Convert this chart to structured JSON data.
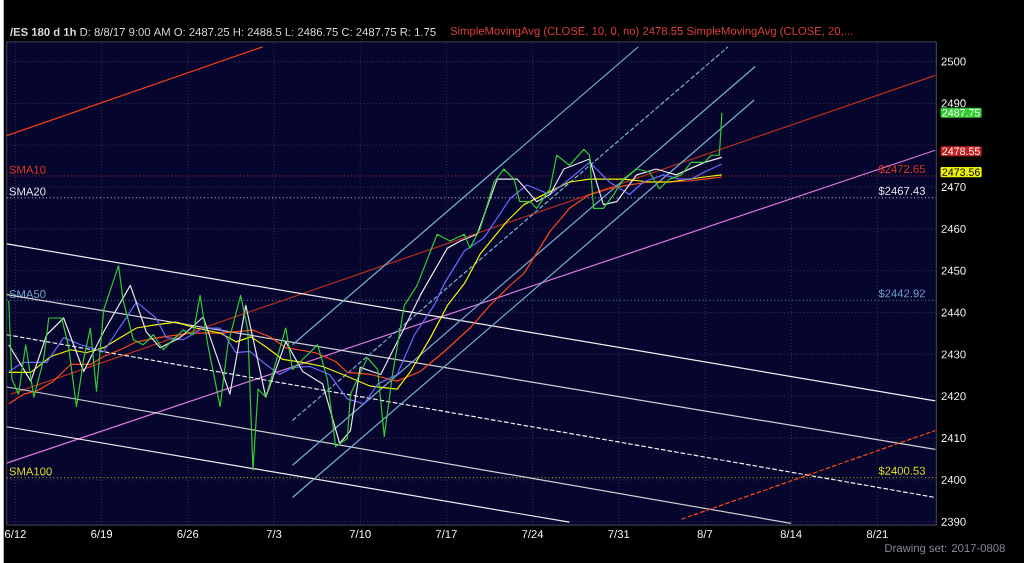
{
  "chart_data": {
    "type": "line",
    "title": "**/ES 180 d 1h**   D: 8/8/17 9:00 AM   O: 2487.25   H: 2488.5   L: 2486.75   C: 2487.75   R: 1.75",
    "subtitle": "SimpleMovingAvg (CLOSE, 10, 0, no) 2478.55   SimpleMovingAvg (CLOSE, 20,...",
    "xlim": [
      "2017-06-11T07:00",
      "2017-08-25T19:00"
    ],
    "ylim": [
      2389.2,
      2504.7
    ],
    "xticks": [
      {
        "value": "2017-06-12",
        "label": "6/12"
      },
      {
        "value": "2017-06-19",
        "label": "6/19"
      },
      {
        "value": "2017-06-26",
        "label": "6/26"
      },
      {
        "value": "2017-07-03",
        "label": "7/3"
      },
      {
        "value": "2017-07-10",
        "label": "7/10"
      },
      {
        "value": "2017-07-17",
        "label": "7/17"
      },
      {
        "value": "2017-07-24",
        "label": "7/24"
      },
      {
        "value": "2017-07-31",
        "label": "7/31"
      },
      {
        "value": "2017-08-07",
        "label": "8/7"
      },
      {
        "value": "2017-08-14",
        "label": "8/14"
      },
      {
        "value": "2017-08-21",
        "label": "8/21"
      }
    ],
    "yticks": [
      2390,
      2400,
      2410,
      2420,
      2430,
      2440,
      2450,
      2460,
      2470,
      {
        "value": 2480,
        "label": null
      },
      2490,
      2500
    ],
    "grid": true,
    "marker": "none",
    "series": [
      {
        "color": "#f0401a",
        "line_style": "solid",
        "x": [
          "2017-06-11T07:00",
          "2017-07-02T02:00"
        ],
        "values": [
          2482.3,
          2503.5
        ]
      },
      {
        "color": "#b8301a",
        "line_style": "solid",
        "x": [
          "2017-06-11T15:00",
          "2017-08-25T17:00"
        ],
        "values": [
          2420.5,
          2496.7
        ]
      },
      {
        "color": "#e07ae0",
        "line_style": "solid",
        "x": [
          "2017-06-11T07:00",
          "2017-08-25T17:00"
        ],
        "values": [
          2404.0,
          2478.8
        ]
      },
      {
        "color": "#f0f0f0",
        "line_style": "solid",
        "x": [
          "2017-06-11T07:00",
          "2017-08-25T17:00"
        ],
        "values": [
          2456.4,
          2418.9
        ]
      },
      {
        "color": "#d0d0d0",
        "line_style": "solid",
        "x": [
          "2017-06-11T07:00",
          "2017-08-25T17:00"
        ],
        "values": [
          2444.3,
          2407.3
        ]
      },
      {
        "color": "#f0f0f0",
        "line_style": "dashed",
        "x": [
          "2017-06-11T07:00",
          "2017-08-25T17:00"
        ],
        "values": [
          2434.7,
          2395.8
        ]
      },
      {
        "color": "#d0d0d0",
        "line_style": "solid",
        "x": [
          "2017-06-11T07:00",
          "2017-08-14T00:00"
        ],
        "values": [
          2422.2,
          2389.6
        ]
      },
      {
        "color": "#f0f0f0",
        "line_style": "solid",
        "x": [
          "2017-06-11T07:00",
          "2017-07-27T00:00"
        ],
        "values": [
          2412.7,
          2389.9
        ]
      },
      {
        "color": "#ff4a14",
        "line_style": "dashed",
        "x": [
          "2017-08-05T02:00",
          "2017-08-25T17:00"
        ],
        "values": [
          2390.6,
          2411.8
        ]
      },
      {
        "color": "#7ab0d0",
        "line_style": "solid",
        "x": [
          "2017-07-04T12:00",
          "2017-08-01T14:00"
        ],
        "values": [
          2432.3,
          2503.5
        ]
      },
      {
        "color": "#7ab0d0",
        "line_style": "dashed",
        "x": [
          "2017-07-04T12:00",
          "2017-08-08T21:00"
        ],
        "values": [
          2414.2,
          2503.5
        ]
      },
      {
        "color": "#7ab0d0",
        "line_style": "solid",
        "x": [
          "2017-07-04T12:00",
          "2017-08-11T02:00"
        ],
        "values": [
          2403.5,
          2498.8
        ]
      },
      {
        "color": "#7ab0d0",
        "line_style": "solid",
        "x": [
          "2017-07-04T12:00",
          "2017-08-11T00:00"
        ],
        "values": [
          2395.8,
          2490.8
        ]
      },
      {
        "color": "#ff4a14",
        "line_style": "solid",
        "x": [
          "2017-06-11T11:00",
          "2017-06-12T16:00",
          "2017-06-13T17:00",
          "2017-06-15T02:00",
          "2017-06-16T12:00",
          "2017-06-18T02:00",
          "2017-06-19T04:00",
          "2017-06-20T12:00",
          "2017-06-21T20:00",
          "2017-06-24T00:00",
          "2017-06-26T05:00",
          "2017-06-28T15:00",
          "2017-07-01T07:00",
          "2017-07-02T16:00",
          "2017-07-03T23:00",
          "2017-07-06T09:00",
          "2017-07-08T00:00",
          "2017-07-08T23:00",
          "2017-07-10T20:00",
          "2017-07-13T00:00",
          "2017-07-14T21:00",
          "2017-07-16T20:00",
          "2017-07-18T22:00",
          "2017-07-20T13:00",
          "2017-07-22T04:00",
          "2017-07-23T07:00",
          "2017-07-25T10:00",
          "2017-07-27T00:00",
          "2017-07-28T15:00",
          "2017-07-30T06:00",
          "2017-07-31T21:00",
          "2017-08-02T12:00",
          "2017-08-04T03:00",
          "2017-08-05T21:00",
          "2017-08-06T23:00",
          "2017-08-08T09:00"
        ],
        "values": [
          2418.2,
          2420.5,
          2421.2,
          2423.6,
          2427.6,
          2427.6,
          2429.5,
          2431.1,
          2433.0,
          2434.2,
          2435.1,
          2435.1,
          2435.8,
          2434.2,
          2431.6,
          2430.4,
          2428.3,
          2425.7,
          2425.2,
          2423.6,
          2425.9,
          2430.7,
          2436.3,
          2441.7,
          2446.5,
          2449.3,
          2459.4,
          2464.9,
          2468.2,
          2469.6,
          2470.5,
          2471.2,
          2471.2,
          2471.5,
          2471.9,
          2472.4
        ]
      },
      {
        "color": "#f5f500",
        "line_style": "solid",
        "x": [
          "2017-06-11T11:00",
          "2017-06-13T06:00",
          "2017-06-14T21:00",
          "2017-06-16T12:00",
          "2017-06-17T18:00",
          "2017-06-19T04:00",
          "2017-06-20T12:00",
          "2017-06-21T20:00",
          "2017-06-23T05:00",
          "2017-06-25T01:00",
          "2017-06-26T16:00",
          "2017-06-28T15:00",
          "2017-06-29T22:00",
          "2017-07-01T03:00",
          "2017-07-02T08:00",
          "2017-07-03T17:00",
          "2017-07-05T08:00",
          "2017-07-06T23:00",
          "2017-07-08T14:00",
          "2017-07-10T20:00",
          "2017-07-13T00:00",
          "2017-07-14T02:00",
          "2017-07-15T17:00",
          "2017-07-17T02:00",
          "2017-07-18T11:00",
          "2017-07-19T18:00",
          "2017-07-21T22:00",
          "2017-07-23T07:00",
          "2017-07-25T10:00",
          "2017-07-27T00:00",
          "2017-07-28T15:00",
          "2017-07-31T09:00",
          "2017-08-02T12:00",
          "2017-08-04T03:00",
          "2017-08-06T23:00",
          "2017-08-08T09:00"
        ],
        "values": [
          2425.7,
          2425.7,
          2429.5,
          2431.1,
          2430.4,
          2431.6,
          2434.0,
          2436.3,
          2437.0,
          2437.7,
          2436.3,
          2435.1,
          2433.0,
          2434.2,
          2431.8,
          2428.8,
          2428.1,
          2427.1,
          2425.2,
          2422.4,
          2421.7,
          2425.9,
          2434.0,
          2441.7,
          2446.9,
          2454.0,
          2461.8,
          2465.8,
          2468.9,
          2471.2,
          2471.9,
          2471.9,
          2471.2,
          2471.2,
          2472.4,
          2472.9
        ]
      },
      {
        "color": "#6b6bff",
        "line_style": "solid",
        "x": [
          "2017-06-11T11:00",
          "2017-06-12T16:00",
          "2017-06-14T13:00",
          "2017-06-15T22:00",
          "2017-06-17T07:00",
          "2017-06-19T04:00",
          "2017-06-21T20:00",
          "2017-06-23T10:00",
          "2017-06-24T06:00",
          "2017-06-25T15:00",
          "2017-06-27T06:00",
          "2017-06-28T15:00",
          "2017-06-29T22:00",
          "2017-07-01T01:00",
          "2017-07-02T08:00",
          "2017-07-03T11:00",
          "2017-07-04T12:00",
          "2017-07-05T22:00",
          "2017-07-07T12:00",
          "2017-07-08T23:00",
          "2017-07-10T08:00",
          "2017-07-11T10:00",
          "2017-07-13T00:00",
          "2017-07-14T10:00",
          "2017-07-16T00:00",
          "2017-07-16T20:00",
          "2017-07-18T11:00",
          "2017-07-20T01:00",
          "2017-07-22T04:00",
          "2017-07-23T13:00",
          "2017-07-25T10:00",
          "2017-07-27T00:00",
          "2017-07-28T15:00",
          "2017-07-30T06:00",
          "2017-07-31T21:00",
          "2017-08-02T00:00",
          "2017-08-03T15:00",
          "2017-08-04T22:00",
          "2017-08-05T21:00",
          "2017-08-06T23:00",
          "2017-08-08T09:00"
        ],
        "values": [
          2425.9,
          2428.1,
          2428.1,
          2434.0,
          2432.3,
          2430.7,
          2442.5,
          2438.7,
          2434.0,
          2433.5,
          2436.3,
          2436.3,
          2430.4,
          2430.7,
          2427.6,
          2425.2,
          2426.9,
          2427.1,
          2425.2,
          2419.3,
          2418.2,
          2422.9,
          2425.2,
          2434.7,
          2441.7,
          2446.9,
          2454.7,
          2457.8,
          2467.2,
          2470.5,
          2468.2,
          2471.9,
          2475.9,
          2471.2,
          2468.2,
          2471.2,
          2472.9,
          2471.9,
          2471.9,
          2473.6,
          2475.5
        ]
      },
      {
        "color": "#e8e8e8",
        "line_style": "solid",
        "x": [
          "2017-06-11T11:00",
          "2017-06-13T06:00",
          "2017-06-14T13:00",
          "2017-06-15T22:00",
          "2017-06-17T13:00",
          "2017-06-19T04:00",
          "2017-06-21T08:00",
          "2017-06-22T15:00",
          "2017-06-23T18:00",
          "2017-06-25T09:00",
          "2017-06-27T06:00",
          "2017-06-29T10:00",
          "2017-06-30T17:00",
          "2017-07-02T08:00",
          "2017-07-03T23:00",
          "2017-07-05T08:00",
          "2017-07-06T23:00",
          "2017-07-08T08:00",
          "2017-07-09T05:00",
          "2017-07-10T00:00",
          "2017-07-11T16:00",
          "2017-07-13T14:00",
          "2017-07-14T21:00",
          "2017-07-17T02:00",
          "2017-07-18T03:00",
          "2017-07-19T12:00",
          "2017-07-21T03:00",
          "2017-07-22T18:00",
          "2017-07-24T08:00",
          "2017-07-25T10:00",
          "2017-07-26T13:00",
          "2017-07-28T15:00",
          "2017-07-29T18:00",
          "2017-07-30T20:00",
          "2017-08-01T11:00",
          "2017-08-03T01:00",
          "2017-08-04T16:00",
          "2017-08-06T23:00",
          "2017-08-08T09:00"
        ],
        "values": [
          2432.3,
          2423.6,
          2434.7,
          2438.7,
          2425.9,
          2435.4,
          2446.5,
          2435.4,
          2431.6,
          2434.0,
          2438.9,
          2420.5,
          2441.7,
          2419.8,
          2433.0,
          2425.9,
          2422.9,
          2408.7,
          2411.8,
          2426.9,
          2425.2,
          2436.3,
          2444.1,
          2455.4,
          2457.1,
          2458.7,
          2471.9,
          2471.9,
          2466.5,
          2468.2,
          2474.3,
          2476.7,
          2465.8,
          2466.5,
          2472.9,
          2474.3,
          2472.9,
          2475.9,
          2477.1
        ]
      },
      {
        "color": "#33cc33",
        "line_style": "solid",
        "x": [
          "2017-06-11T11:00",
          "2017-06-11T17:00",
          "2017-06-12T06:00",
          "2017-06-12T20:00",
          "2017-06-13T12:00",
          "2017-06-14T07:00",
          "2017-06-14T17:00",
          "2017-06-15T18:00",
          "2017-06-16T07:00",
          "2017-06-16T23:00",
          "2017-06-17T13:00",
          "2017-06-18T02:00",
          "2017-06-18T14:00",
          "2017-06-19T04:00",
          "2017-06-20T09:00",
          "2017-06-20T18:00",
          "2017-06-21T14:00",
          "2017-06-22T09:00",
          "2017-06-23T05:00",
          "2017-06-24T00:00",
          "2017-06-24T19:00",
          "2017-06-25T15:00",
          "2017-06-26T10:00",
          "2017-06-27T00:00",
          "2017-06-27T15:00",
          "2017-06-28T15:00",
          "2017-06-29T06:00",
          "2017-06-30T07:00",
          "2017-06-30T21:00",
          "2017-07-01T07:00",
          "2017-07-01T17:00",
          "2017-07-02T08:00",
          "2017-07-03T23:00",
          "2017-07-04T12:00",
          "2017-07-05T08:00",
          "2017-07-06T13:00",
          "2017-07-07T08:00",
          "2017-07-08T00:00",
          "2017-07-08T23:00",
          "2017-07-09T05:00",
          "2017-07-10T14:00",
          "2017-07-11T10:00",
          "2017-07-11T23:00",
          "2017-07-12T15:00",
          "2017-07-13T14:00",
          "2017-07-14T15:00",
          "2017-07-16T06:00",
          "2017-07-17T07:00",
          "2017-07-18T11:00",
          "2017-07-18T22:00",
          "2017-07-19T18:00",
          "2017-07-20T21:00",
          "2017-07-21T16:00",
          "2017-07-22T12:00",
          "2017-07-22T23:00",
          "2017-07-23T19:00",
          "2017-07-24T08:00",
          "2017-07-25T10:00",
          "2017-07-25T23:00",
          "2017-07-27T00:00",
          "2017-07-28T04:00",
          "2017-07-28T15:00",
          "2017-07-28T23:00",
          "2017-07-29T18:00",
          "2017-07-30T14:00",
          "2017-07-31T09:00",
          "2017-08-01T11:00",
          "2017-08-02T12:00",
          "2017-08-03T07:00",
          "2017-08-04T03:00",
          "2017-08-05T02:00",
          "2017-08-05T21:00",
          "2017-08-06T23:00",
          "2017-08-07T12:00",
          "2017-08-08T04:00",
          "2017-08-08T08:00",
          "2017-08-08T09:00"
        ],
        "values": [
          2442.9,
          2424.1,
          2420.5,
          2432.3,
          2419.8,
          2428.8,
          2438.7,
          2438.7,
          2432.3,
          2417.5,
          2428.8,
          2436.3,
          2421.2,
          2440.6,
          2451.2,
          2442.9,
          2433.5,
          2432.3,
          2434.7,
          2431.1,
          2433.5,
          2435.8,
          2434.7,
          2444.1,
          2432.3,
          2417.5,
          2432.3,
          2444.1,
          2435.8,
          2402.4,
          2421.7,
          2419.8,
          2436.3,
          2426.4,
          2428.8,
          2432.3,
          2424.1,
          2408.0,
          2409.9,
          2420.5,
          2429.2,
          2426.4,
          2410.4,
          2425.2,
          2441.7,
          2446.5,
          2458.7,
          2457.1,
          2458.7,
          2455.4,
          2460.1,
          2471.2,
          2474.3,
          2471.9,
          2466.5,
          2466.5,
          2464.9,
          2469.6,
          2477.6,
          2475.2,
          2479.0,
          2477.6,
          2464.9,
          2464.9,
          2468.2,
          2471.9,
          2474.3,
          2473.6,
          2469.6,
          2471.9,
          2472.9,
          2475.9,
          2475.9,
          2477.6,
          2477.6,
          2485.4,
          2487.75
        ]
      }
    ],
    "ref_lines": [
      {
        "axis": "y",
        "value": 2472.65,
        "label": "SMA10",
        "color": "#e03a20",
        "line_style": "dotted"
      },
      {
        "axis": "y",
        "value": 2467.43,
        "label": "SMA20",
        "color": "#f0f0f0",
        "line_style": "dotted"
      },
      {
        "axis": "y",
        "value": 2442.92,
        "label": "SMA50",
        "color": "#6fa8c8",
        "line_style": "dotted"
      },
      {
        "axis": "y",
        "value": 2400.53,
        "label": "SMA100",
        "color": "#e8e020",
        "line_style": "dotted"
      }
    ],
    "annotations": [
      {
        "text": "$2472.65",
        "x": "2017-08-23",
        "y": 2472.65
      },
      {
        "text": "$2467.43",
        "x": "2017-08-23",
        "y": 2467.43
      },
      {
        "text": "$2442.92",
        "x": "2017-08-23",
        "y": 2442.92
      },
      {
        "text": "$2400.53",
        "x": "2017-08-23",
        "y": 2400.53
      },
      "2487.75",
      "2478.55",
      "2473.56",
      "Drawing set: 2017-0808"
    ]
  }
}
